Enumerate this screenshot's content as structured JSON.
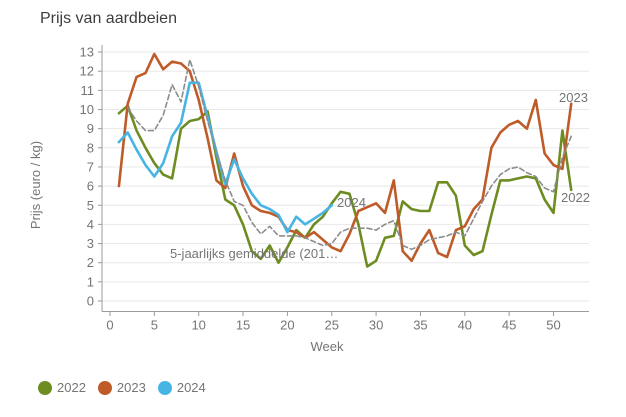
{
  "title": "Prijs van aardbeien",
  "y_axis": {
    "label": "Prijs (euro / kg)",
    "tick_labels": [
      "0",
      "1",
      "2",
      "3",
      "4",
      "5",
      "6",
      "7",
      "8",
      "9",
      "10",
      "11",
      "12",
      "13"
    ]
  },
  "x_axis": {
    "label": "Week",
    "tick_labels": [
      "0",
      "5",
      "10",
      "15",
      "20",
      "25",
      "30",
      "35",
      "40",
      "45",
      "50"
    ]
  },
  "annotation": {
    "text": "5-jaarlijks gemiddelde (201…"
  },
  "line_labels": {
    "y2022": "2022",
    "y2023": "2023",
    "y2024": "2024"
  },
  "legend": {
    "items": [
      {
        "label": "2022",
        "color": "#6d8c21"
      },
      {
        "label": "2023",
        "color": "#bf5b28"
      },
      {
        "label": "2024",
        "color": "#47b4e4"
      }
    ]
  },
  "colors": {
    "grid": "#e8e8e8",
    "axis": "#9b9b9b",
    "tick_text": "#757575",
    "avg_line": "#8c8c8c"
  },
  "chart_data": {
    "type": "line",
    "title": "Prijs van aardbeien",
    "xlabel": "Week",
    "ylabel": "Prijs (euro / kg)",
    "xlim": [
      0,
      54
    ],
    "ylim": [
      0,
      13
    ],
    "x_ticks": [
      0,
      5,
      10,
      15,
      20,
      25,
      30,
      35,
      40,
      45,
      50
    ],
    "y_ticks": [
      0,
      1,
      2,
      3,
      4,
      5,
      6,
      7,
      8,
      9,
      10,
      11,
      12,
      13
    ],
    "grid": "horizontal",
    "legend_position": "bottom-left",
    "series": [
      {
        "name": "2022",
        "color": "#6d8c21",
        "style": "solid",
        "x_start": 1,
        "values": [
          9.8,
          10.2,
          8.9,
          8.0,
          7.2,
          6.6,
          6.4,
          9.0,
          9.4,
          9.5,
          9.9,
          7.5,
          5.3,
          5.0,
          4.0,
          2.6,
          2.2,
          2.9,
          2.0,
          2.8,
          3.7,
          3.3,
          4.0,
          4.4,
          5.1,
          5.7,
          5.6,
          4.0,
          1.8,
          2.1,
          3.3,
          3.4,
          5.2,
          4.8,
          4.7,
          4.7,
          6.2,
          6.2,
          5.5,
          2.9,
          2.4,
          2.6,
          4.5,
          6.3,
          6.3,
          6.4,
          6.5,
          6.4,
          5.3,
          4.6,
          8.9,
          5.8
        ]
      },
      {
        "name": "2023",
        "color": "#bf5b28",
        "style": "solid",
        "x_start": 1,
        "values": [
          6.0,
          10.3,
          11.7,
          11.9,
          12.9,
          12.1,
          12.5,
          12.4,
          12.0,
          10.5,
          8.5,
          6.3,
          5.9,
          7.7,
          6.0,
          5.0,
          4.7,
          4.6,
          4.4,
          3.7,
          3.6,
          3.3,
          3.6,
          3.2,
          2.8,
          2.6,
          3.5,
          4.7,
          4.9,
          5.1,
          4.6,
          6.3,
          2.6,
          2.1,
          3.0,
          3.7,
          2.5,
          2.3,
          3.7,
          3.9,
          4.8,
          5.3,
          8.0,
          8.8,
          9.2,
          9.4,
          9.0,
          10.5,
          7.7,
          7.1,
          6.9,
          10.3
        ]
      },
      {
        "name": "2024",
        "color": "#47b4e4",
        "style": "solid",
        "x_start": 1,
        "values": [
          8.3,
          8.8,
          7.9,
          7.1,
          6.5,
          7.2,
          8.6,
          9.3,
          11.4,
          11.4,
          9.6,
          7.8,
          6.1,
          7.4,
          6.4,
          5.6,
          5.0,
          4.8,
          4.5,
          3.6,
          4.4,
          4.0,
          4.3,
          4.6,
          5.0
        ]
      },
      {
        "name": "5-jaarlijks gemiddelde (201…",
        "color": "#8c8c8c",
        "style": "dashed",
        "x_start": 2,
        "values": [
          10.1,
          9.4,
          8.9,
          8.9,
          9.7,
          11.3,
          10.4,
          12.6,
          11.2,
          9.4,
          7.8,
          6.3,
          5.2,
          5.0,
          4.1,
          3.5,
          3.9,
          3.4,
          3.4,
          3.4,
          3.3,
          3.1,
          2.9,
          3.0,
          3.6,
          3.8,
          3.8,
          3.8,
          3.7,
          4.0,
          4.2,
          2.9,
          2.7,
          2.9,
          3.2,
          3.3,
          3.4,
          3.6,
          3.4,
          4.3,
          5.2,
          6.0,
          6.6,
          6.9,
          7.0,
          6.7,
          6.5,
          5.9,
          5.7,
          7.5,
          8.6
        ]
      }
    ]
  }
}
